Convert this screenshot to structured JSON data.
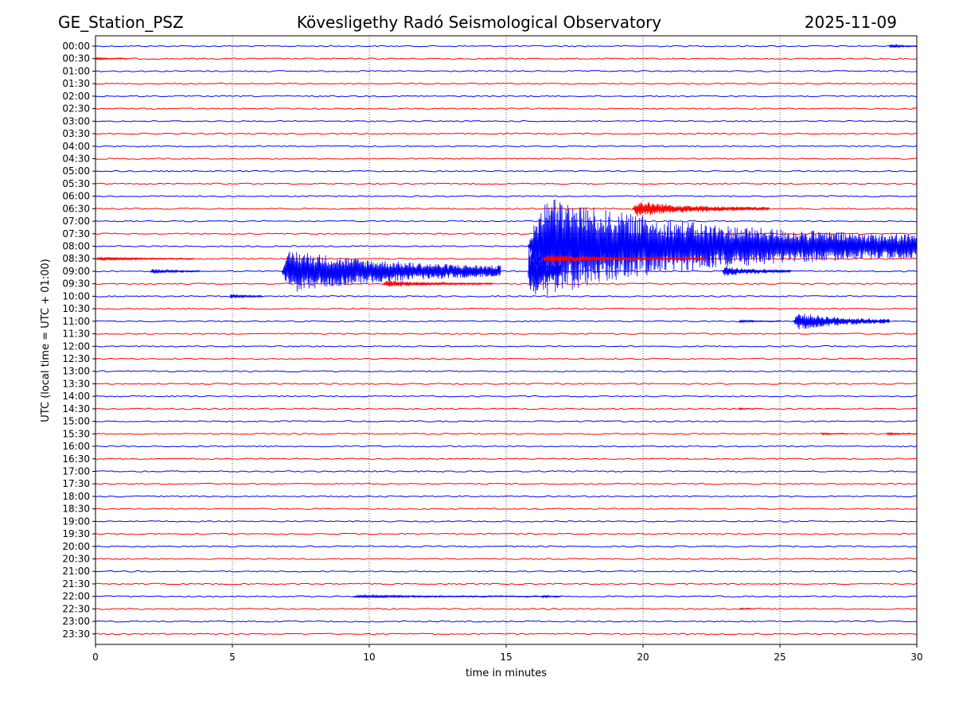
{
  "chart_data": {
    "type": "line",
    "title_left": "GE_Station_PSZ",
    "title_center": "Kövesligethy Radó Seismological Observatory",
    "title_right": "2025-11-09",
    "xlabel": "time in minutes",
    "ylabel": "UTC (local time = UTC + 01:00)",
    "xlim": [
      0,
      30
    ],
    "x_ticks": [
      "0",
      "5",
      "10",
      "15",
      "20",
      "25",
      "30"
    ],
    "x_tick_values": [
      0,
      5,
      10,
      15,
      20,
      25,
      30
    ],
    "row_labels": [
      "00:00",
      "00:30",
      "01:00",
      "01:30",
      "02:00",
      "02:30",
      "03:00",
      "03:30",
      "04:00",
      "04:30",
      "05:00",
      "05:30",
      "06:00",
      "06:30",
      "07:00",
      "07:30",
      "08:00",
      "08:30",
      "09:00",
      "09:30",
      "10:00",
      "10:30",
      "11:00",
      "11:30",
      "12:00",
      "12:30",
      "13:00",
      "13:30",
      "14:00",
      "14:30",
      "15:00",
      "15:30",
      "16:00",
      "16:30",
      "17:00",
      "17:30",
      "18:00",
      "18:30",
      "19:00",
      "19:30",
      "20:00",
      "20:30",
      "21:00",
      "21:30",
      "22:00",
      "22:30",
      "23:00",
      "23:30"
    ],
    "series_colors": [
      "#0000ff",
      "#ff0000"
    ],
    "grid": "vertical dotted",
    "events": [
      {
        "row": 0,
        "start": 29.0,
        "dur": 1.0,
        "amp": 6,
        "decay": 1.0
      },
      {
        "row": 1,
        "start": 0.0,
        "dur": 1.2,
        "amp": 4,
        "decay": 1.0
      },
      {
        "row": 13,
        "start": 19.6,
        "dur": 5.0,
        "amp": 22,
        "decay": 0.9
      },
      {
        "row": 16,
        "start": 15.8,
        "dur": 14.2,
        "amp": 140,
        "decay": 0.8
      },
      {
        "row": 16,
        "start": 23.6,
        "dur": 1.5,
        "amp": 14,
        "decay": 1.0
      },
      {
        "row": 16,
        "start": 27.0,
        "dur": 2.5,
        "amp": 18,
        "decay": 1.0
      },
      {
        "row": 17,
        "start": 0.0,
        "dur": 3.6,
        "amp": 6,
        "decay": 1.0
      },
      {
        "row": 17,
        "start": 16.3,
        "dur": 6.0,
        "amp": 14,
        "decay": 1.0
      },
      {
        "row": 18,
        "start": 2.0,
        "dur": 1.8,
        "amp": 8,
        "decay": 1.0
      },
      {
        "row": 18,
        "start": 6.8,
        "dur": 8.0,
        "amp": 60,
        "decay": 0.7
      },
      {
        "row": 18,
        "start": 15.8,
        "dur": 1.2,
        "amp": 110,
        "decay": 1.0
      },
      {
        "row": 18,
        "start": 22.9,
        "dur": 2.5,
        "amp": 16,
        "decay": 0.8
      },
      {
        "row": 19,
        "start": 10.5,
        "dur": 4.0,
        "amp": 10,
        "decay": 1.0
      },
      {
        "row": 20,
        "start": 4.9,
        "dur": 1.2,
        "amp": 8,
        "decay": 1.0
      },
      {
        "row": 22,
        "start": 23.5,
        "dur": 1.5,
        "amp": 4,
        "decay": 1.0
      },
      {
        "row": 22,
        "start": 25.5,
        "dur": 3.5,
        "amp": 24,
        "decay": 0.7
      },
      {
        "row": 29,
        "start": 23.5,
        "dur": 0.6,
        "amp": 3,
        "decay": 1.0
      },
      {
        "row": 31,
        "start": 26.5,
        "dur": 1.0,
        "amp": 3,
        "decay": 1.0
      },
      {
        "row": 31,
        "start": 28.9,
        "dur": 1.1,
        "amp": 4,
        "decay": 1.0
      },
      {
        "row": 44,
        "start": 9.4,
        "dur": 7.0,
        "amp": 4,
        "decay": 1.0
      },
      {
        "row": 44,
        "start": 16.3,
        "dur": 0.7,
        "amp": 5,
        "decay": 1.0
      },
      {
        "row": 45,
        "start": 23.5,
        "dur": 0.6,
        "amp": 3,
        "decay": 1.0
      }
    ]
  }
}
